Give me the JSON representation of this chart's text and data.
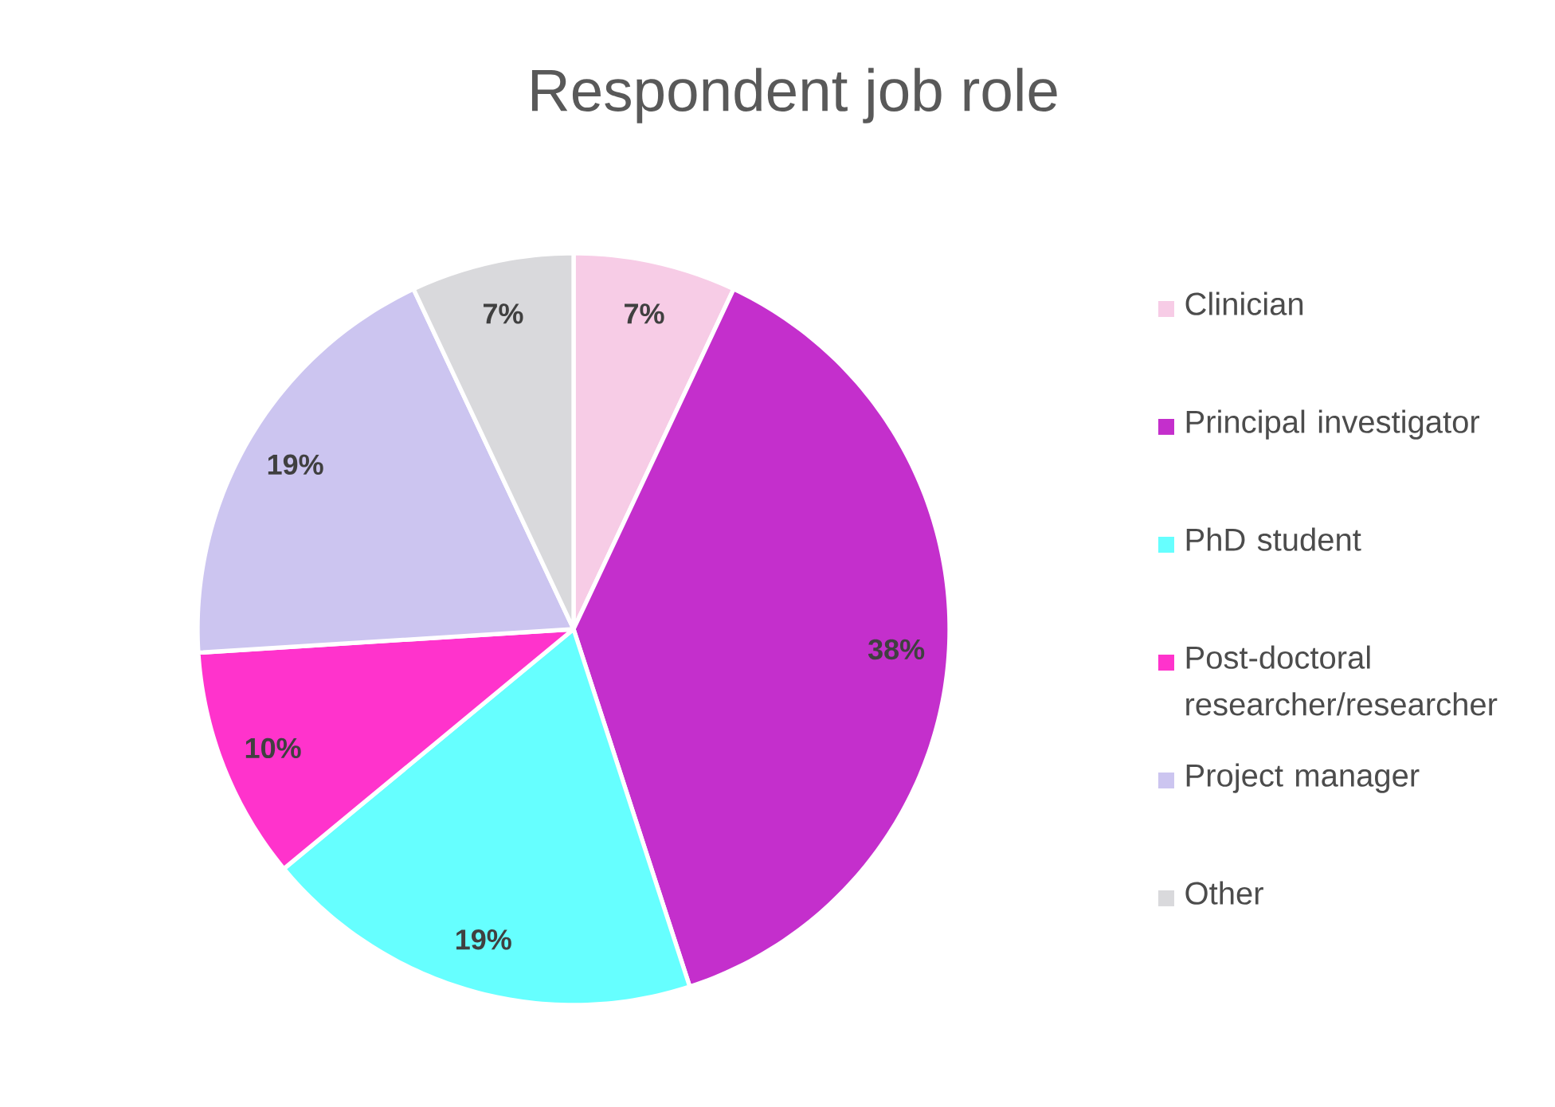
{
  "chart_data": {
    "type": "pie",
    "title": "Respondent job role",
    "categories": [
      "Clinician",
      "Principal investigator",
      "PhD student",
      "Post-doctoral researcher/researcher",
      "Project manager",
      "Other"
    ],
    "values": [
      7,
      38,
      19,
      10,
      19,
      7
    ],
    "value_labels": [
      "7%",
      "38%",
      "19%",
      "10%",
      "19%",
      "7%"
    ],
    "colors": [
      "#f7cce6",
      "#c42fcc",
      "#66ffff",
      "#ff33cc",
      "#ccc5f0",
      "#d9d9dc"
    ],
    "legend": "right"
  }
}
